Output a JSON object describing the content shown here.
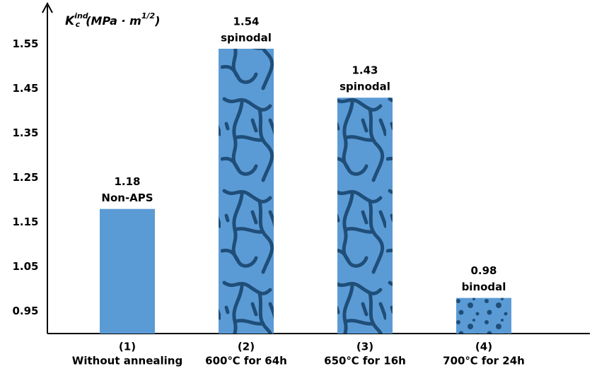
{
  "chart_data": {
    "type": "bar",
    "y_label": {
      "symbol": "K",
      "sub": "c",
      "sup": "ind",
      "unit_open": "(MPa · m",
      "unit_exp": "1/2",
      "unit_close": ")"
    },
    "categories": [
      "(1)",
      "(2)",
      "(3)",
      "(4)"
    ],
    "category_details": [
      "Without annealing",
      "600℃ for 64h",
      "650℃ for 16h",
      "700℃ for 24h"
    ],
    "values": [
      1.18,
      1.54,
      1.43,
      0.98
    ],
    "bar_annotations": [
      "Non-APS",
      "spinodal",
      "spinodal",
      "binodal"
    ],
    "textures": [
      "plain",
      "network",
      "network",
      "dots"
    ],
    "color": "#5b9bd5",
    "texture_color": "#1f4e79",
    "ylim": [
      0.9,
      1.64
    ],
    "yticks": [
      0.95,
      1.05,
      1.15,
      1.25,
      1.35,
      1.45,
      1.55
    ],
    "grid": false
  }
}
